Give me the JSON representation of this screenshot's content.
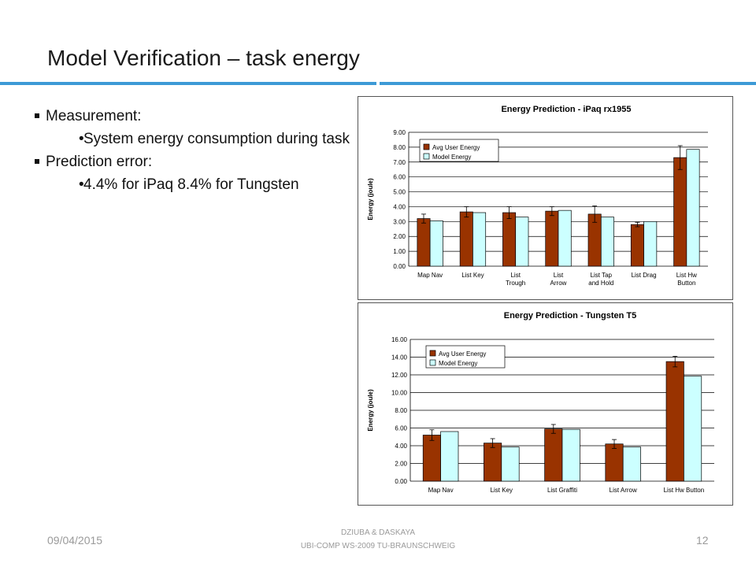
{
  "slide": {
    "title": "Model Verification – task energy",
    "bullets": [
      {
        "text": "Measurement:",
        "sub": [
          "System energy consumption during task"
        ]
      },
      {
        "text": "Prediction error:",
        "sub": [
          "4.4% for iPaq 8.4% for Tungsten"
        ]
      }
    ]
  },
  "footer": {
    "date": "09/04/2015",
    "authors": "DZIUBA & DASKAYA",
    "venue": "UBI-COMP WS-2009 TU-BRAUNSCHWEIG",
    "page": "12"
  },
  "colors": {
    "accent": "#3d9ad6",
    "avg_bar": "#993300",
    "model_bar": "#ccffff"
  },
  "chart_data": [
    {
      "type": "bar",
      "title": "Energy Prediction - iPaq rx1955",
      "ylabel": "Energy (joule)",
      "xlabel": "",
      "categories": [
        "Map Nav",
        "List Key",
        "List Trough",
        "List Arrow",
        "List Tap and Hold",
        "List Drag",
        "List Hw Button"
      ],
      "series": [
        {
          "name": "Avg User Energy",
          "values": [
            3.2,
            3.65,
            3.6,
            3.7,
            3.5,
            2.8,
            7.3
          ],
          "error": [
            0.3,
            0.35,
            0.4,
            0.3,
            0.55,
            0.15,
            0.8
          ]
        },
        {
          "name": "Model Energy",
          "values": [
            3.05,
            3.6,
            3.3,
            3.75,
            3.3,
            3.0,
            7.85
          ]
        }
      ],
      "ylim": [
        0,
        9
      ],
      "yticks": [
        "0.00",
        "1.00",
        "2.00",
        "3.00",
        "4.00",
        "5.00",
        "6.00",
        "7.00",
        "8.00",
        "9.00"
      ],
      "grid": true,
      "legend": "top-left"
    },
    {
      "type": "bar",
      "title": "Energy Prediction - Tungsten T5",
      "ylabel": "Energy (joule)",
      "xlabel": "",
      "categories": [
        "Map Nav",
        "List Key",
        "List Graffiti",
        "List Arrow",
        "List Hw Button"
      ],
      "series": [
        {
          "name": "Avg User Energy",
          "values": [
            5.2,
            4.3,
            5.9,
            4.2,
            13.5
          ],
          "error": [
            0.6,
            0.5,
            0.5,
            0.5,
            0.6
          ]
        },
        {
          "name": "Model Energy",
          "values": [
            5.6,
            3.85,
            5.85,
            3.85,
            11.85
          ]
        }
      ],
      "ylim": [
        0,
        16
      ],
      "yticks": [
        "0.00",
        "2.00",
        "4.00",
        "6.00",
        "8.00",
        "10.00",
        "12.00",
        "14.00",
        "16.00"
      ],
      "grid": true,
      "legend": "top-left"
    }
  ]
}
